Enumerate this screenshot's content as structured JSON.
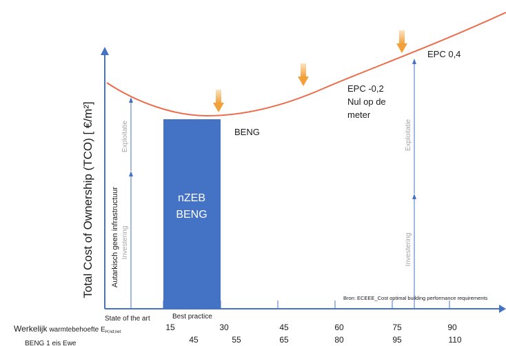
{
  "y_axis_label": "Total Cost of Ownership (TCO) [ €/m²]",
  "left_column_label": "Autarkisch geen infrastructuur",
  "left_exploitatie": "Exploitatie",
  "left_investering": "Investering",
  "right_exploitatie": "Exploitatie",
  "right_investering": "Investering",
  "block_line1": "nZEB",
  "block_line2": "BENG",
  "beng_label": "BENG",
  "epc_neg_line1": "EPC -0,2",
  "epc_neg_line2": "Nul op de",
  "epc_neg_line3": "meter",
  "epc_04": "EPC 0,4",
  "source": "Bron: ECEEE_Cost optimal building performance requirements",
  "state_of_art": "State of the art",
  "best_practice": "Best practice",
  "row1_label_big": "Werkelijk",
  "row1_label_small": "warmtebehoefte E",
  "row1_label_sub": "H;nd;net",
  "row1_values": [
    "15",
    "30",
    "45",
    "60",
    "75",
    "90"
  ],
  "row2_label": "BENG 1 eis Ewe",
  "row2_values": [
    "45",
    "55",
    "65",
    "80",
    "95",
    "110"
  ],
  "colors": {
    "axis": "#4472c4",
    "curve": "#ed6a4a",
    "block": "#4472c4",
    "arrow": "#f5b04a"
  }
}
